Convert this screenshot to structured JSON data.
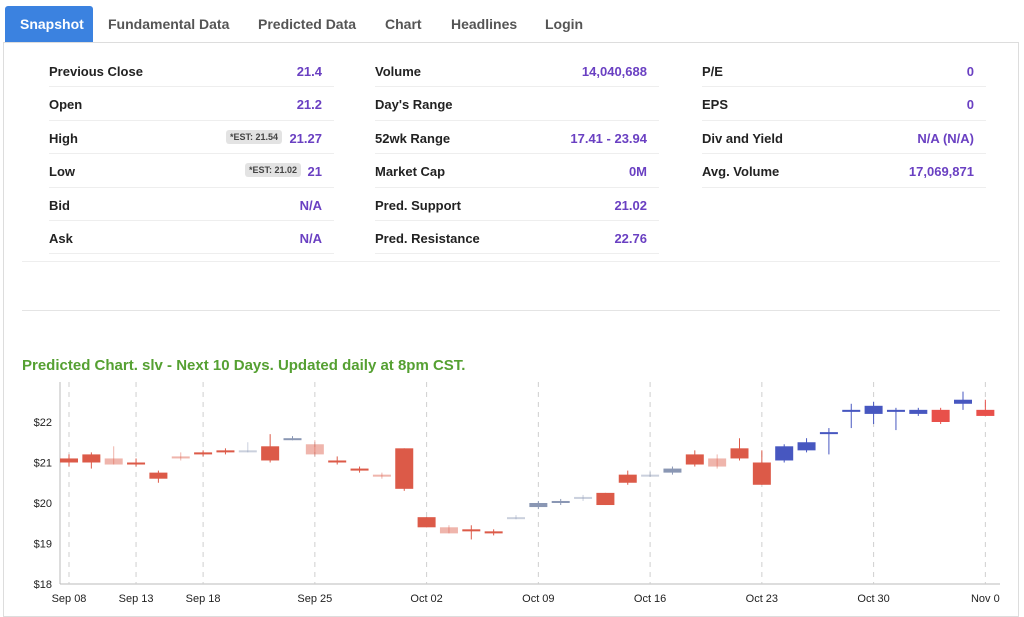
{
  "tabs": [
    {
      "label": "Snapshot",
      "active": true
    },
    {
      "label": "Fundamental Data",
      "active": false
    },
    {
      "label": "Predicted Data",
      "active": false
    },
    {
      "label": "Chart",
      "active": false
    },
    {
      "label": "Headlines",
      "active": false
    },
    {
      "label": "Login",
      "active": false
    }
  ],
  "snapshot": {
    "col1": [
      {
        "label": "Previous Close",
        "value": "21.4"
      },
      {
        "label": "Open",
        "value": "21.2"
      },
      {
        "label": "High",
        "value": "21.27",
        "est": "*EST: 21.54"
      },
      {
        "label": "Low",
        "value": "21",
        "est": "*EST: 21.02"
      },
      {
        "label": "Bid",
        "value": "N/A"
      },
      {
        "label": "Ask",
        "value": "N/A"
      }
    ],
    "col2": [
      {
        "label": "Volume",
        "value": "14,040,688"
      },
      {
        "label": "Day's Range",
        "value": ""
      },
      {
        "label": "52wk Range",
        "value": "17.41 - 23.94"
      },
      {
        "label": "Market Cap",
        "value": "0M"
      },
      {
        "label": "Pred. Support",
        "value": "21.02"
      },
      {
        "label": "Pred. Resistance",
        "value": "22.76"
      }
    ],
    "col3": [
      {
        "label": "P/E",
        "value": "0"
      },
      {
        "label": "EPS",
        "value": "0"
      },
      {
        "label": "Div and Yield",
        "value": "N/A (N/A)"
      },
      {
        "label": "Avg. Volume",
        "value": "17,069,871"
      }
    ]
  },
  "chart_title": "Predicted Chart. slv - Next 10 Days. Updated daily at 8pm CST.",
  "colors": {
    "accent": "#3b82e0",
    "value": "#6a40c2",
    "title": "#55a032",
    "up_hist": "#dc5a48",
    "down_hist": "#8a97b4",
    "up_pred": "#e8504a",
    "down_pred": "#4757c0"
  },
  "chart_data": {
    "type": "candlestick",
    "ylim": [
      18,
      23
    ],
    "y_ticks": [
      "$18",
      "$19",
      "$20",
      "$21",
      "$22"
    ],
    "x_tick_labels": [
      {
        "label": "Sep 08",
        "index": 0
      },
      {
        "label": "Sep 13",
        "index": 3
      },
      {
        "label": "Sep 18",
        "index": 6
      },
      {
        "label": "Sep 25",
        "index": 11
      },
      {
        "label": "Oct 02",
        "index": 16
      },
      {
        "label": "Oct 09",
        "index": 21
      },
      {
        "label": "Oct 16",
        "index": 26
      },
      {
        "label": "Oct 23",
        "index": 31
      },
      {
        "label": "Oct 30",
        "index": 36
      },
      {
        "label": "Nov 0",
        "index": 41
      }
    ],
    "candles": [
      {
        "o": 21.1,
        "h": 21.2,
        "l": 20.9,
        "c": 21.0,
        "kind": "hist"
      },
      {
        "o": 21.2,
        "h": 21.25,
        "l": 20.85,
        "c": 21.0,
        "kind": "hist"
      },
      {
        "o": 21.1,
        "h": 21.4,
        "l": 20.95,
        "c": 20.95,
        "kind": "hist"
      },
      {
        "o": 21.0,
        "h": 21.1,
        "l": 20.9,
        "c": 20.95,
        "kind": "hist"
      },
      {
        "o": 20.75,
        "h": 20.8,
        "l": 20.5,
        "c": 20.6,
        "kind": "hist"
      },
      {
        "o": 21.15,
        "h": 21.25,
        "l": 21.05,
        "c": 21.1,
        "kind": "hist"
      },
      {
        "o": 21.25,
        "h": 21.3,
        "l": 21.15,
        "c": 21.2,
        "kind": "hist"
      },
      {
        "o": 21.3,
        "h": 21.35,
        "l": 21.2,
        "c": 21.25,
        "kind": "hist"
      },
      {
        "o": 21.3,
        "h": 21.5,
        "l": 21.25,
        "c": 21.3,
        "kind": "hist"
      },
      {
        "o": 21.4,
        "h": 21.7,
        "l": 21.0,
        "c": 21.05,
        "kind": "hist"
      },
      {
        "o": 21.6,
        "h": 21.65,
        "l": 21.55,
        "c": 21.6,
        "kind": "hist"
      },
      {
        "o": 21.45,
        "h": 21.55,
        "l": 21.15,
        "c": 21.2,
        "kind": "hist"
      },
      {
        "o": 21.05,
        "h": 21.15,
        "l": 20.95,
        "c": 21.0,
        "kind": "hist"
      },
      {
        "o": 20.85,
        "h": 20.9,
        "l": 20.75,
        "c": 20.8,
        "kind": "hist"
      },
      {
        "o": 20.7,
        "h": 20.75,
        "l": 20.6,
        "c": 20.65,
        "kind": "hist"
      },
      {
        "o": 21.35,
        "h": 21.35,
        "l": 20.3,
        "c": 20.35,
        "kind": "hist"
      },
      {
        "o": 19.65,
        "h": 19.65,
        "l": 19.4,
        "c": 19.4,
        "kind": "hist"
      },
      {
        "o": 19.4,
        "h": 19.45,
        "l": 19.25,
        "c": 19.25,
        "kind": "hist"
      },
      {
        "o": 19.35,
        "h": 19.45,
        "l": 19.1,
        "c": 19.3,
        "kind": "hist"
      },
      {
        "o": 19.3,
        "h": 19.35,
        "l": 19.2,
        "c": 19.25,
        "kind": "hist"
      },
      {
        "o": 19.65,
        "h": 19.7,
        "l": 19.6,
        "c": 19.65,
        "kind": "hist"
      },
      {
        "o": 19.9,
        "h": 20.05,
        "l": 19.85,
        "c": 20.0,
        "kind": "hist"
      },
      {
        "o": 20.0,
        "h": 20.1,
        "l": 19.95,
        "c": 20.05,
        "kind": "hist"
      },
      {
        "o": 20.1,
        "h": 20.2,
        "l": 20.05,
        "c": 20.15,
        "kind": "hist"
      },
      {
        "o": 20.25,
        "h": 20.25,
        "l": 19.95,
        "c": 19.95,
        "kind": "hist"
      },
      {
        "o": 20.7,
        "h": 20.8,
        "l": 20.45,
        "c": 20.5,
        "kind": "hist"
      },
      {
        "o": 20.7,
        "h": 20.8,
        "l": 20.65,
        "c": 20.7,
        "kind": "hist"
      },
      {
        "o": 20.75,
        "h": 20.9,
        "l": 20.7,
        "c": 20.85,
        "kind": "hist"
      },
      {
        "o": 21.2,
        "h": 21.3,
        "l": 20.9,
        "c": 20.95,
        "kind": "hist"
      },
      {
        "o": 21.1,
        "h": 21.2,
        "l": 20.85,
        "c": 20.9,
        "kind": "hist"
      },
      {
        "o": 21.35,
        "h": 21.6,
        "l": 21.05,
        "c": 21.1,
        "kind": "hist"
      },
      {
        "o": 21.0,
        "h": 21.3,
        "l": 20.45,
        "c": 20.45,
        "kind": "hist"
      },
      {
        "o": 21.05,
        "h": 21.45,
        "l": 21.0,
        "c": 21.4,
        "kind": "pred"
      },
      {
        "o": 21.3,
        "h": 21.6,
        "l": 21.25,
        "c": 21.5,
        "kind": "pred"
      },
      {
        "o": 21.75,
        "h": 21.85,
        "l": 21.2,
        "c": 21.75,
        "kind": "pred"
      },
      {
        "o": 22.25,
        "h": 22.45,
        "l": 21.85,
        "c": 22.3,
        "kind": "pred"
      },
      {
        "o": 22.2,
        "h": 22.5,
        "l": 21.95,
        "c": 22.4,
        "kind": "pred"
      },
      {
        "o": 22.25,
        "h": 22.35,
        "l": 21.8,
        "c": 22.3,
        "kind": "pred"
      },
      {
        "o": 22.2,
        "h": 22.35,
        "l": 22.15,
        "c": 22.3,
        "kind": "pred"
      },
      {
        "o": 22.3,
        "h": 22.35,
        "l": 21.95,
        "c": 22.0,
        "kind": "pred"
      },
      {
        "o": 22.45,
        "h": 22.75,
        "l": 22.3,
        "c": 22.55,
        "kind": "pred"
      },
      {
        "o": 22.3,
        "h": 22.55,
        "l": 22.15,
        "c": 22.15,
        "kind": "pred"
      }
    ]
  }
}
